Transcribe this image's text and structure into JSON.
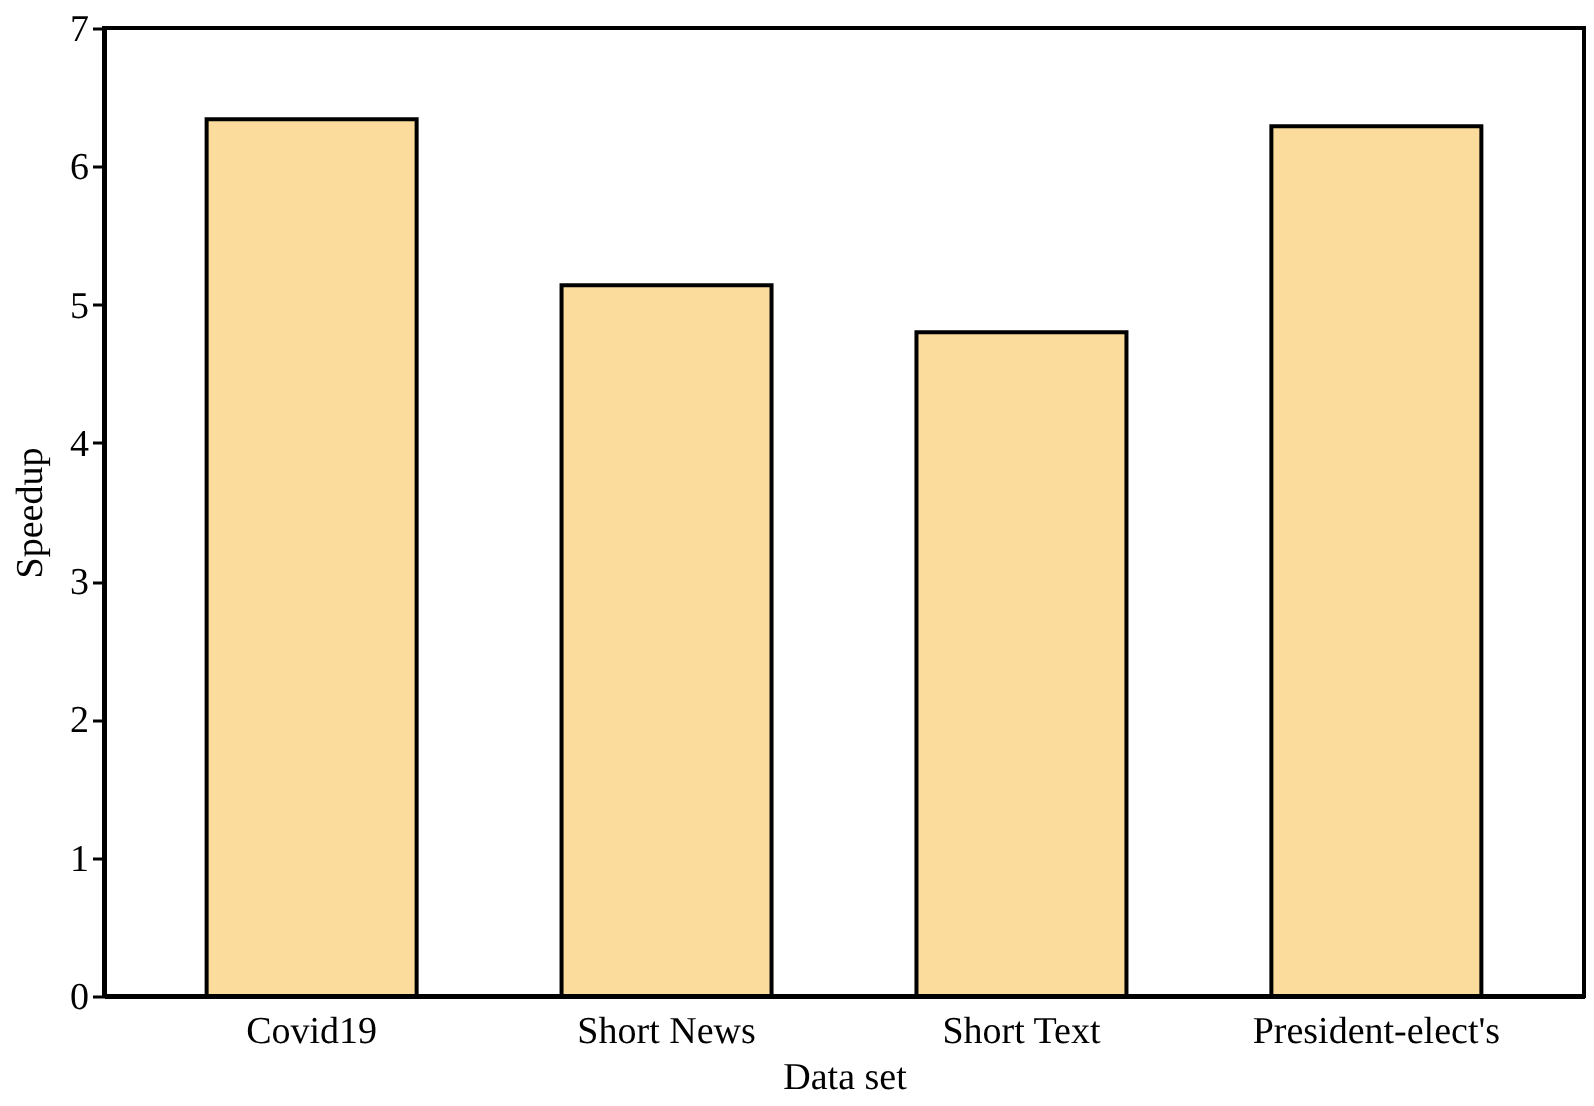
{
  "chart_data": {
    "type": "bar",
    "xlabel": "Data set",
    "ylabel": "Speedup",
    "categories": [
      "Covid19",
      "Short News",
      "Short Text",
      "President-elect's"
    ],
    "values": [
      6.34,
      5.14,
      4.8,
      6.29
    ],
    "color": "#fbdc9c",
    "ylim": [
      0,
      7
    ],
    "yticks": [
      0,
      1,
      2,
      3,
      4,
      5,
      6,
      7
    ],
    "grid": false
  }
}
